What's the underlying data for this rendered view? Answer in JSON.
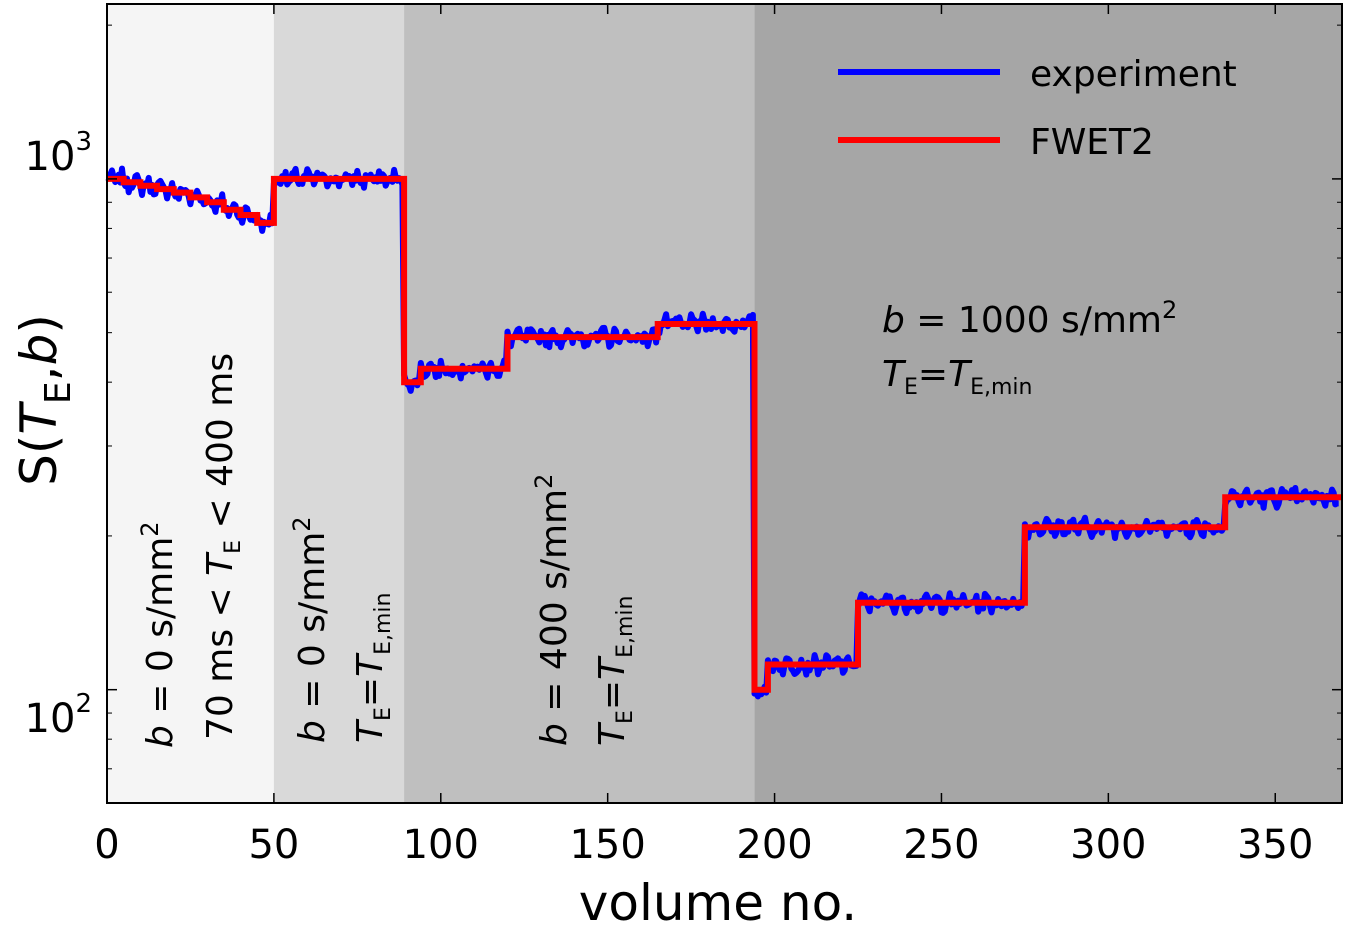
{
  "chart_data": {
    "type": "line",
    "title": "",
    "xlabel": "volume no.",
    "ylabel": {
      "main": "S(",
      "italic_T": "T",
      "sub_E": "E",
      "rest": ",",
      "italic_b": "b",
      "close": ")"
    },
    "xlim": [
      0,
      370
    ],
    "ylim": [
      60,
      2200
    ],
    "yscale": "log",
    "x_ticks": [
      0,
      50,
      100,
      150,
      200,
      250,
      300,
      350
    ],
    "y_ticks": [
      {
        "value": 100,
        "base": "10",
        "exp": "2"
      },
      {
        "value": 1000,
        "base": "10",
        "exp": "3"
      }
    ],
    "grid": false,
    "legend": {
      "placement": "top-right",
      "entries": [
        {
          "name": "experiment",
          "color": "#0000ff"
        },
        {
          "name": "FWET2",
          "color": "#ff0000"
        }
      ]
    },
    "regions": [
      {
        "x0": 0,
        "x1": 50,
        "color": "#f5f5f5"
      },
      {
        "x0": 50,
        "x1": 89,
        "color": "#d9d9d9"
      },
      {
        "x0": 89,
        "x1": 194,
        "color": "#bfbfbf"
      },
      {
        "x0": 194,
        "x1": 370,
        "color": "#a6a6a6"
      }
    ],
    "annotations": [
      {
        "id": "region1-b",
        "italic": "b",
        "text": " = 0 s/mm",
        "sup": "2"
      },
      {
        "id": "region1-te",
        "prefix": "70 ms < ",
        "italic": "T",
        "sub": "E",
        "suffix": " < 400 ms"
      },
      {
        "id": "region2-b",
        "italic": "b",
        "text": " = 0 s/mm",
        "sup": "2"
      },
      {
        "id": "region2-te",
        "italic": "T",
        "sub": "E",
        "eq": "=",
        "italic2": "T",
        "sub2": "E,min"
      },
      {
        "id": "region3-b",
        "italic": "b",
        "text": " = 400 s/mm",
        "sup": "2"
      },
      {
        "id": "region3-te",
        "italic": "T",
        "sub": "E",
        "eq": "=",
        "italic2": "T",
        "sub2": "E,min"
      },
      {
        "id": "region4-b",
        "italic": "b",
        "text": " = 1000 s/mm",
        "sup": "2"
      },
      {
        "id": "region4-te",
        "italic": "T",
        "sub": "E",
        "eq": "=",
        "italic2": "T",
        "sub2": "E,min"
      }
    ],
    "series": [
      {
        "name": "FWET2",
        "color": "#ff0000",
        "steps": [
          {
            "x0": 0,
            "x1": 5,
            "y": 1000
          },
          {
            "x0": 5,
            "x1": 10,
            "y": 985
          },
          {
            "x0": 10,
            "x1": 15,
            "y": 970
          },
          {
            "x0": 15,
            "x1": 20,
            "y": 955
          },
          {
            "x0": 20,
            "x1": 25,
            "y": 940
          },
          {
            "x0": 25,
            "x1": 30,
            "y": 920
          },
          {
            "x0": 30,
            "x1": 35,
            "y": 900
          },
          {
            "x0": 35,
            "x1": 40,
            "y": 870
          },
          {
            "x0": 40,
            "x1": 45,
            "y": 850
          },
          {
            "x0": 45,
            "x1": 50,
            "y": 820
          },
          {
            "x0": 50,
            "x1": 89,
            "y": 1000
          },
          {
            "x0": 89,
            "x1": 94,
            "y": 400
          },
          {
            "x0": 94,
            "x1": 120,
            "y": 425
          },
          {
            "x0": 120,
            "x1": 165,
            "y": 490
          },
          {
            "x0": 165,
            "x1": 194,
            "y": 520
          },
          {
            "x0": 194,
            "x1": 198,
            "y": 100
          },
          {
            "x0": 198,
            "x1": 225,
            "y": 112
          },
          {
            "x0": 225,
            "x1": 275,
            "y": 148
          },
          {
            "x0": 275,
            "x1": 335,
            "y": 208
          },
          {
            "x0": 335,
            "x1": 370,
            "y": 238
          }
        ]
      },
      {
        "name": "experiment",
        "color": "#0000ff",
        "noise_amplitude": 0.03,
        "points_per_volume": 1
      }
    ]
  }
}
